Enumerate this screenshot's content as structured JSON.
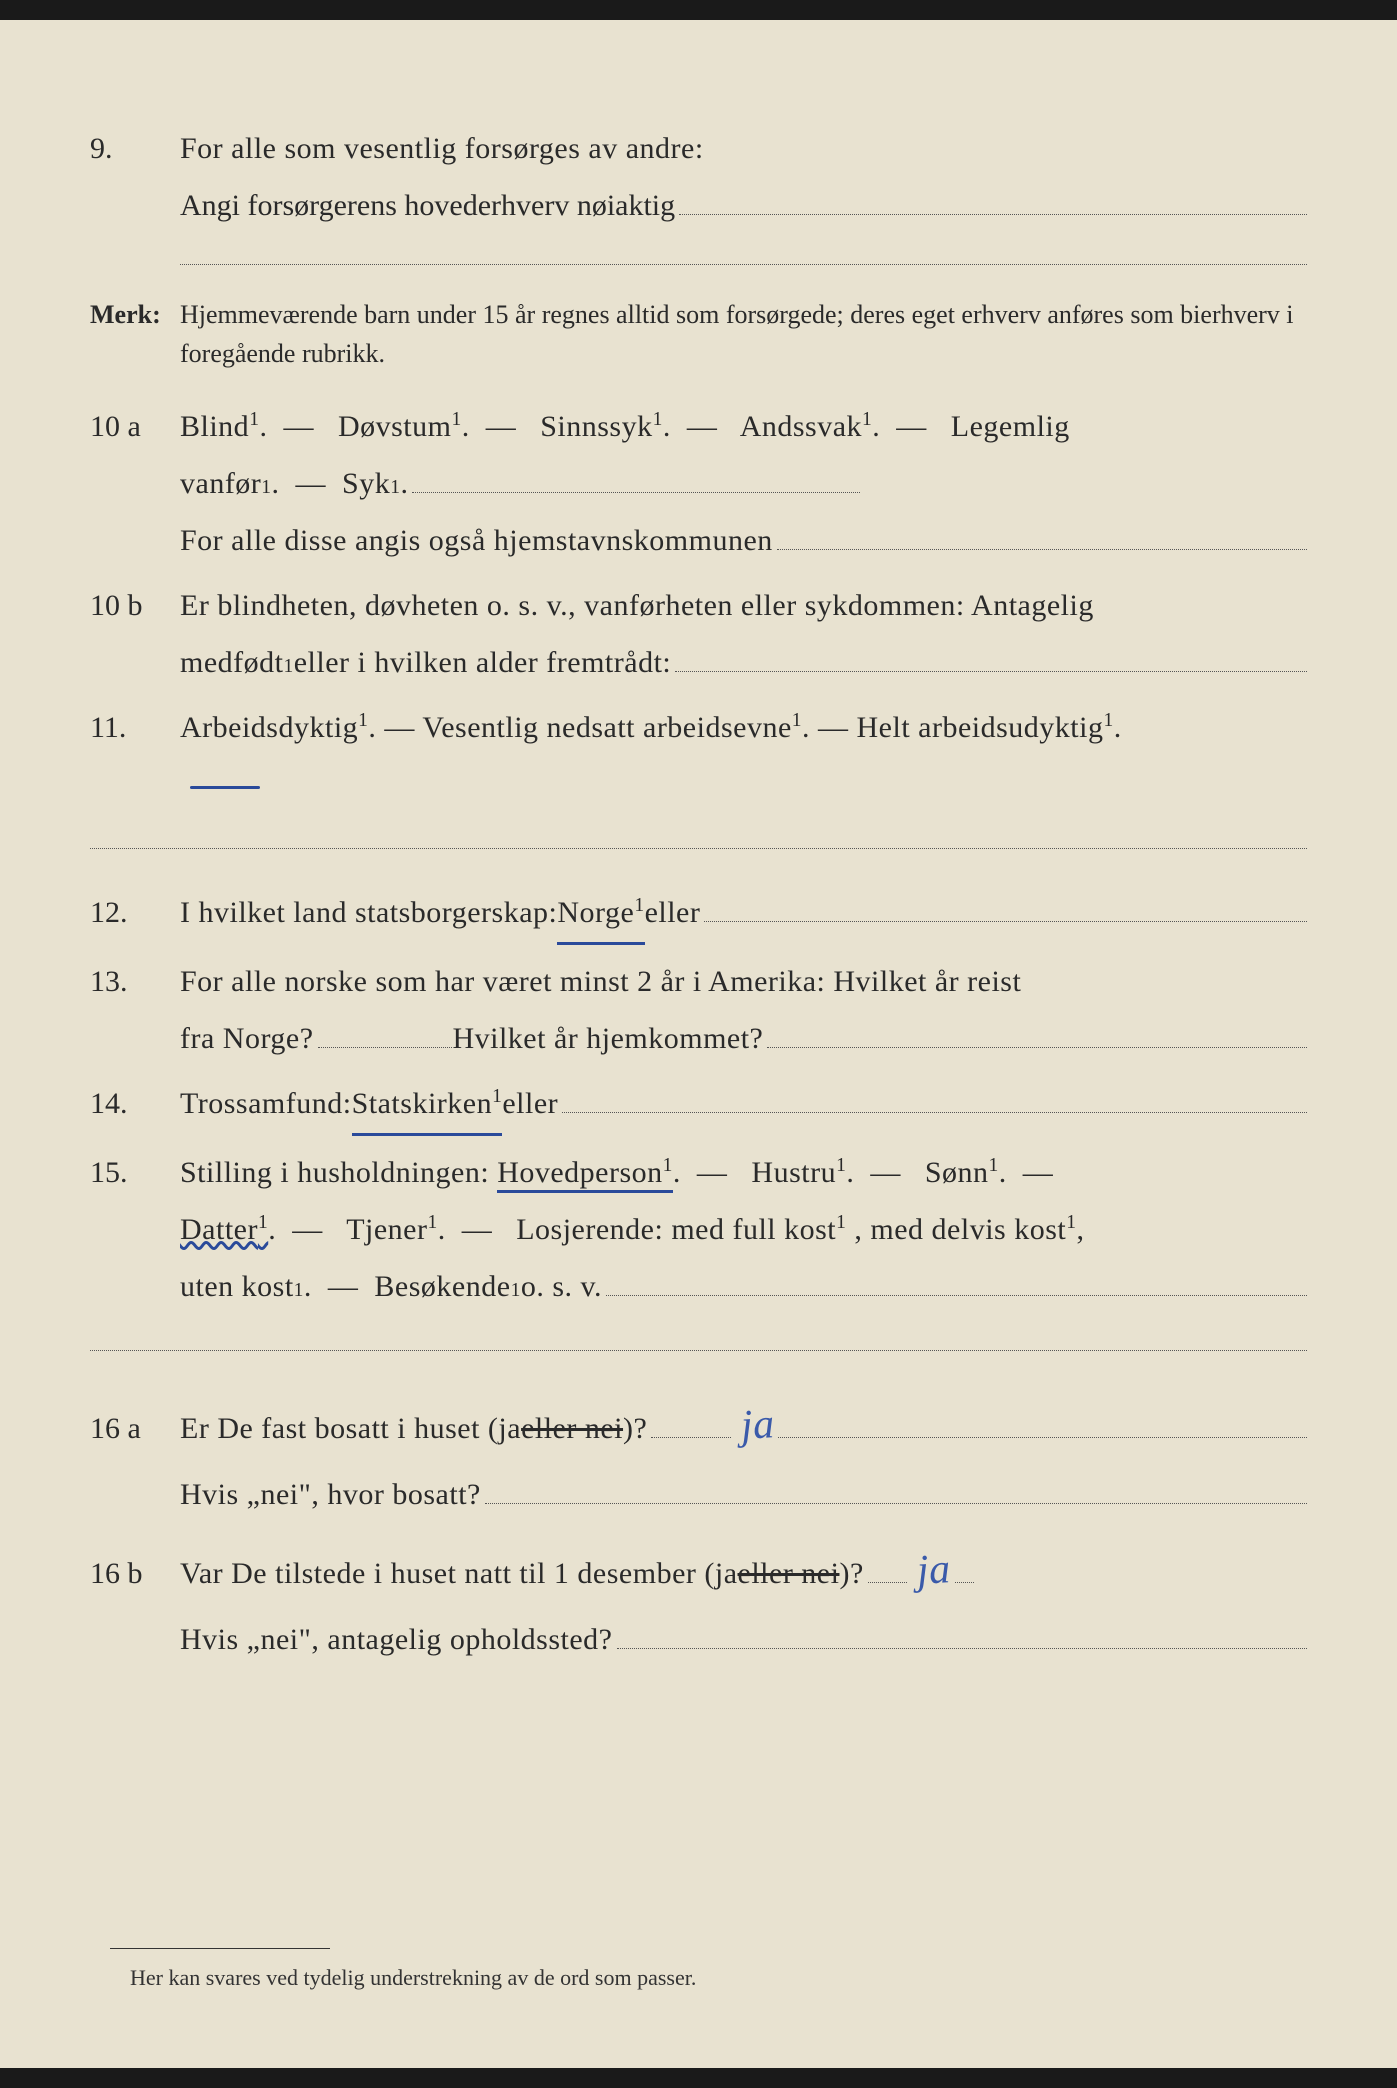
{
  "q9": {
    "num": "9.",
    "line1": "For alle som vesentlig forsørges av andre:",
    "line2": "Angi forsørgerens hovederhverv nøiaktig"
  },
  "merk": {
    "label": "Merk:",
    "text": "Hjemmeværende barn under 15 år regnes alltid som forsørgede; deres eget erhverv anføres som bierhverv i foregående rubrikk."
  },
  "q10a": {
    "num": "10 a",
    "opt1": "Blind",
    "opt2": "Døvstum",
    "opt3": "Sinnssyk",
    "opt4": "Andssvak",
    "opt5": "Legemlig",
    "opt6": "vanfør",
    "opt7": "Syk",
    "line2": "For alle disse angis også hjemstavnskommunen"
  },
  "q10b": {
    "num": "10 b",
    "line1": "Er blindheten, døvheten o. s. v., vanførheten eller sykdommen: Antagelig",
    "line2_a": "medfødt",
    "line2_b": " eller i hvilken alder fremtrådt:"
  },
  "q11": {
    "num": "11.",
    "opt1": "Arbeidsdyktig",
    "opt2": "Vesentlig nedsatt arbeidsevne",
    "opt3": "Helt arbeidsudyktig"
  },
  "q12": {
    "num": "12.",
    "text_a": "I hvilket land statsborgerskap: ",
    "norge": "Norge",
    "text_b": " eller"
  },
  "q13": {
    "num": "13.",
    "line1": "For alle norske som har været minst 2 år i Amerika:  Hvilket år reist",
    "line2_a": "fra Norge?",
    "line2_b": " Hvilket år hjemkommet?"
  },
  "q14": {
    "num": "14.",
    "text_a": "Trossamfund:  ",
    "statskirken": "Statskirken",
    "text_b": " eller"
  },
  "q15": {
    "num": "15.",
    "text_a": "Stilling i husholdningen:  ",
    "hovedperson": "Hovedperson",
    "hustru": "Hustru",
    "sonn": "Sønn",
    "datter": "Datter",
    "tjener": "Tjener",
    "losj": "Losjerende:  med full kost",
    "delvis": ", med delvis kost",
    "uten": "uten kost",
    "besok": "Besøkende",
    "osv": " o. s. v."
  },
  "q16a": {
    "num": "16 a",
    "text_a": "Er De fast bosatt i huset (ja ",
    "struck": "eller nei",
    "text_b": ")?",
    "answer": "ja",
    "line2": "Hvis „nei\", hvor bosatt?"
  },
  "q16b": {
    "num": "16 b",
    "text_a": "Var De tilstede i huset natt til 1 desember (ja ",
    "struck": "eller nei",
    "text_b": ")?",
    "answer": "ja",
    "line2": "Hvis „nei\", antagelig opholdssted?"
  },
  "footnote": "Her kan svares ved tydelig understrekning av de ord som passer."
}
